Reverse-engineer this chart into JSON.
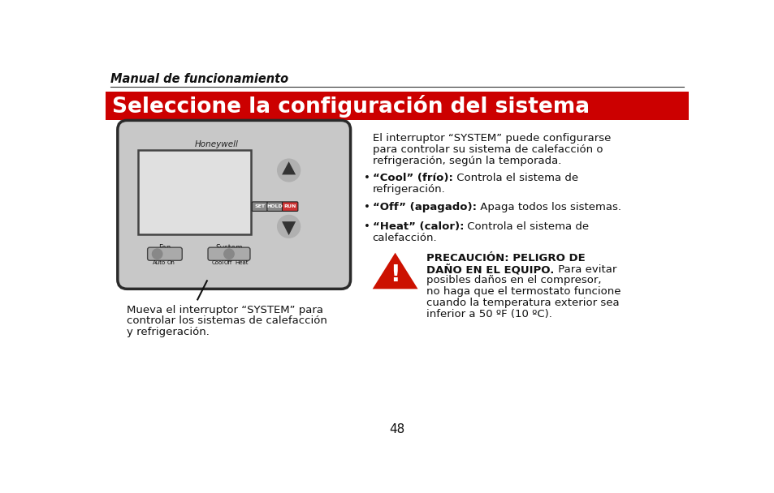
{
  "bg_color": "#ffffff",
  "header_italic": "Manual de funcionamiento",
  "red_banner_text": "Seleccione la configuración del sistema",
  "red_banner_color": "#cc0000",
  "red_banner_text_color": "#ffffff",
  "body_text_left_line1": "Mueva el interruptor “SYSTEM” para",
  "body_text_left_line2": "controlar los sistemas de calefacción",
  "body_text_left_line3": "y refrigeración.",
  "body_text_right_intro_l1": "El interruptor “SYSTEM” puede configurarse",
  "body_text_right_intro_l2": "para controlar su sistema de calefacción o",
  "body_text_right_intro_l3": "refrigeración, según la temporada.",
  "bullet1_bold": "“Cool” (frío):",
  "bullet1_rest": " Controla el sistema de",
  "bullet1_cont": "refrigeración.",
  "bullet2_bold": "“Off” (apagado):",
  "bullet2_rest": " Apaga todos los sistemas.",
  "bullet3_bold": "“Heat” (calor):",
  "bullet3_rest": " Controla el sistema de",
  "bullet3_cont": "calefacción.",
  "caution_bold1": "PRECAUCIÓN: PELIGRO DE",
  "caution_bold2": "DAÑO EN EL EQUIPO.",
  "caution_rest": " Para evitar",
  "caution_l3": "posibles daños en el compresor,",
  "caution_l4": "no haga que el termostato funcione",
  "caution_l5": "cuando la temperatura exterior sea",
  "caution_l6": "inferior a 50 ºF (10 ºC).",
  "page_number": "48",
  "thermostat_bg": "#c8c8c8",
  "thermostat_border": "#2a2a2a",
  "screen_bg": "#d8d8d8",
  "screen_border": "#444444",
  "brand_text": "Honeywell"
}
